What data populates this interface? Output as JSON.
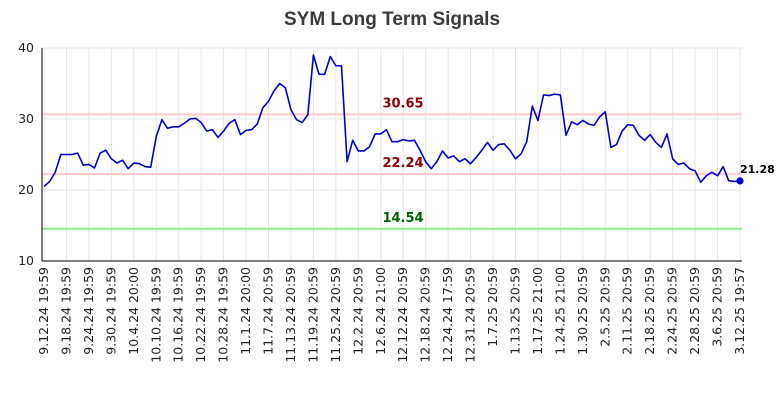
{
  "chart_data": {
    "type": "line",
    "title": "SYM Long Term Signals",
    "xlabel": "",
    "ylabel": "",
    "ylim": [
      10,
      40
    ],
    "yticks": [
      10,
      20,
      30,
      40
    ],
    "x_tick_labels": [
      "9.12.24 19:59",
      "9.18.24 19:59",
      "9.24.24 19:59",
      "9.30.24 19:59",
      "10.4.24 20:00",
      "10.10.24 19:59",
      "10.16.24 19:59",
      "10.22.24 19:59",
      "10.28.24 19:59",
      "11.1.24 20:00",
      "11.7.24 20:59",
      "11.13.24 20:59",
      "11.19.24 20:59",
      "11.25.24 20:59",
      "12.2.24 20:59",
      "12.6.24 21:00",
      "12.12.24 20:59",
      "12.18.24 20:59",
      "12.24.24 17:59",
      "12.31.24 20:59",
      "1.7.25 20:59",
      "1.13.25 20:59",
      "1.17.25 21:00",
      "1.24.25 21:00",
      "1.30.25 20:59",
      "2.5.25 20:59",
      "2.11.25 20:59",
      "2.18.25 20:59",
      "2.24.25 20:59",
      "2.28.25 20:59",
      "3.6.25 20:59",
      "3.12.25 19:57"
    ],
    "series": [
      {
        "name": "",
        "color": "#0000cc",
        "values": [
          20.5,
          21.2,
          22.5,
          25.0,
          25.0,
          25.0,
          25.2,
          23.5,
          23.6,
          23.1,
          25.2,
          25.6,
          24.4,
          23.8,
          24.2,
          23.0,
          23.8,
          23.7,
          23.3,
          23.2,
          27.5,
          29.9,
          28.7,
          28.9,
          28.9,
          29.4,
          30.0,
          30.1,
          29.5,
          28.3,
          28.5,
          27.4,
          28.3,
          29.4,
          29.9,
          27.8,
          28.4,
          28.5,
          29.3,
          31.6,
          32.5,
          34.0,
          35.0,
          34.4,
          31.3,
          29.9,
          29.5,
          30.6,
          39.0,
          36.3,
          36.3,
          38.8,
          37.5,
          37.5,
          24.0,
          27.0,
          25.5,
          25.5,
          26.1,
          27.9,
          27.9,
          28.5,
          26.8,
          26.8,
          27.1,
          26.9,
          27.0,
          25.6,
          24.0,
          23.0,
          24.0,
          25.5,
          24.5,
          24.8,
          24.0,
          24.4,
          23.7,
          24.6,
          25.6,
          26.7,
          25.6,
          26.4,
          26.5,
          25.6,
          24.4,
          25.1,
          26.8,
          31.8,
          29.8,
          33.4,
          33.3,
          33.5,
          33.4,
          27.7,
          29.6,
          29.2,
          29.8,
          29.3,
          29.1,
          30.3,
          31.0,
          26.0,
          26.4,
          28.3,
          29.2,
          29.1,
          27.7,
          27.0,
          27.8,
          26.7,
          26.0,
          27.9,
          24.4,
          23.6,
          23.8,
          23.0,
          22.7,
          21.1,
          22.0,
          22.5,
          22.0,
          23.3,
          21.3,
          21.2,
          21.28
        ]
      }
    ],
    "reference_lines": [
      {
        "value": 30.65,
        "label": "30.65",
        "line_color": "#ffc8c8",
        "label_color": "#8b0000"
      },
      {
        "value": 22.24,
        "label": "22.24",
        "line_color": "#ffc8c8",
        "label_color": "#8b0000"
      },
      {
        "value": 14.54,
        "label": "14.54",
        "line_color": "#90ee90",
        "label_color": "#006400"
      }
    ],
    "last_value_label": "21.28",
    "grid": true,
    "legend": "none"
  }
}
